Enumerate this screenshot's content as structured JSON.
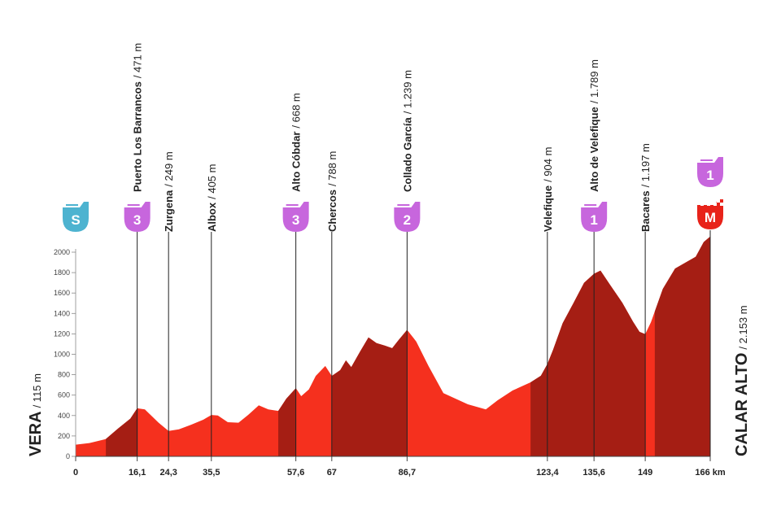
{
  "chart_data": {
    "type": "area",
    "x": [
      0,
      3.6,
      7.9,
      11,
      14.3,
      16.1,
      18.1,
      21.7,
      24.3,
      27,
      30.2,
      33.4,
      35.5,
      37.2,
      39.8,
      42.6,
      45.1,
      47.9,
      50.4,
      53,
      55.1,
      57.6,
      59,
      61,
      62.8,
      65.3,
      67,
      69.2,
      70.7,
      72.1,
      74.3,
      76.6,
      78.7,
      80.9,
      82.8,
      84.5,
      86.7,
      89.1,
      92.3,
      96.2,
      99.4,
      102.6,
      107.3,
      110.4,
      114.3,
      119,
      121.7,
      123.4,
      124.9,
      127.4,
      130.2,
      133,
      135.6,
      137.3,
      139.8,
      143,
      145.8,
      147.5,
      149,
      150.5,
      153.6,
      156.8,
      159.4,
      162.2,
      164.3,
      166
    ],
    "values": [
      115,
      130,
      170,
      270,
      370,
      471,
      460,
      330,
      249,
      265,
      310,
      360,
      405,
      400,
      335,
      330,
      405,
      500,
      460,
      445,
      565,
      668,
      590,
      655,
      788,
      885,
      788,
      845,
      940,
      875,
      1020,
      1165,
      1110,
      1085,
      1060,
      1140,
      1239,
      1125,
      885,
      620,
      565,
      510,
      460,
      550,
      645,
      725,
      790,
      904,
      1045,
      1305,
      1500,
      1700,
      1789,
      1820,
      1680,
      1505,
      1320,
      1220,
      1197,
      1315,
      1640,
      1840,
      1895,
      1955,
      2100,
      2153
    ],
    "light_color": "#f5301e",
    "dark_color": "#a51e14",
    "climbs": [
      [
        7.9,
        16.1
      ],
      [
        53,
        57.6
      ],
      [
        67,
        86.7
      ],
      [
        119,
        149
      ],
      [
        151.5,
        166
      ]
    ],
    "xlim": [
      0,
      166
    ],
    "ylim": [
      0,
      2000
    ],
    "yticks": [
      0,
      200,
      400,
      600,
      800,
      1000,
      1200,
      1400,
      1600,
      1800,
      2000
    ],
    "xticks": [
      0,
      {
        "value": 16.1,
        "label": "16,1"
      },
      {
        "value": 24.3,
        "label": "24,3"
      },
      {
        "value": 35.5,
        "label": "35,5"
      },
      {
        "value": 57.6,
        "label": "57,6"
      },
      67,
      {
        "value": 86.7,
        "label": "86,7"
      },
      {
        "value": 123.4,
        "label": "123,4"
      },
      {
        "value": 135.6,
        "label": "135,6"
      },
      149,
      {
        "value": 166,
        "label": "166 km"
      }
    ],
    "start": {
      "name": "VERA",
      "detail": "/ 115 m",
      "badge": "S",
      "color": "#4db3d0"
    },
    "finish": {
      "name": "CALAR ALTO",
      "detail": "/ 2.153 m",
      "badges": [
        "1",
        "M"
      ],
      "colors": [
        "#c766dd",
        "#e8231a"
      ]
    },
    "points": [
      {
        "km": 16.1,
        "name": "Puerto Los Barrancos",
        "detail": "/ 471 m",
        "badge": "3",
        "color": "#c766dd"
      },
      {
        "km": 24.3,
        "name": "Zurgena",
        "detail": "/ 249 m"
      },
      {
        "km": 35.5,
        "name": "Albox",
        "detail": "/ 405 m"
      },
      {
        "km": 57.6,
        "name": "Alto Cóbdar",
        "detail": "/ 668 m",
        "badge": "3",
        "color": "#c766dd"
      },
      {
        "km": 67,
        "name": "Chercos",
        "detail": "/ 788 m"
      },
      {
        "km": 86.7,
        "name": "Collado García",
        "detail": "/ 1.239 m",
        "badge": "2",
        "color": "#c766dd"
      },
      {
        "km": 123.4,
        "name": "Velefique",
        "detail": "/ 904 m"
      },
      {
        "km": 135.6,
        "name": "Alto de Velefique",
        "detail": "/ 1.789 m",
        "badge": "1",
        "color": "#c766dd"
      },
      {
        "km": 149,
        "name": "Bacares",
        "detail": "/ 1.197 m"
      }
    ]
  }
}
